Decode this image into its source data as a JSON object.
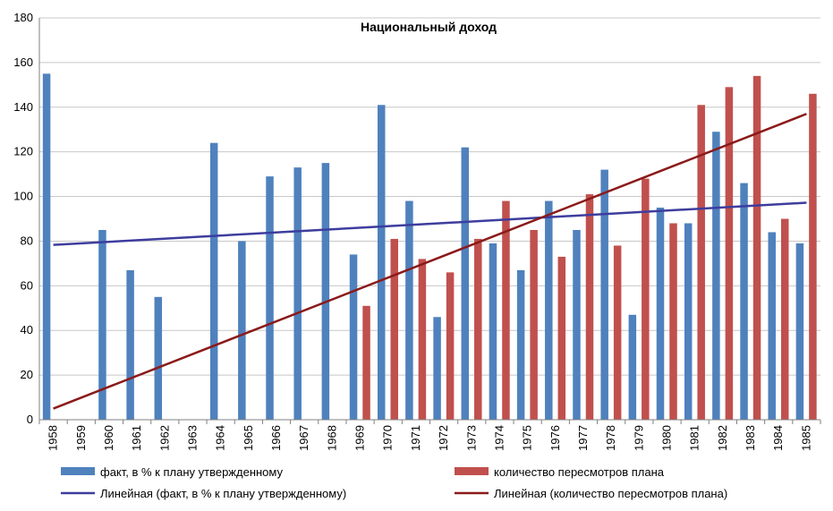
{
  "chart_data": {
    "type": "bar",
    "title": "Национальный доход",
    "xlabel": "",
    "ylabel": "",
    "ylim": [
      0,
      180
    ],
    "yticks": [
      0,
      20,
      40,
      60,
      80,
      100,
      120,
      140,
      160,
      180
    ],
    "grid": true,
    "legend_position": "bottom",
    "categories": [
      "1958",
      "1959",
      "1960",
      "1961",
      "1962",
      "1963",
      "1964",
      "1965",
      "1966",
      "1967",
      "1968",
      "1969",
      "1970",
      "1971",
      "1972",
      "1973",
      "1974",
      "1975",
      "1976",
      "1977",
      "1978",
      "1979",
      "1980",
      "1981",
      "1982",
      "1983",
      "1984",
      "1985"
    ],
    "series": [
      {
        "name": "факт, в % к плану утвержденному",
        "color": "#4f81bd",
        "values": [
          155,
          null,
          85,
          67,
          55,
          null,
          124,
          80,
          109,
          113,
          115,
          74,
          141,
          98,
          46,
          122,
          79,
          67,
          98,
          85,
          112,
          47,
          95,
          88,
          129,
          106,
          84,
          79
        ]
      },
      {
        "name": "количество пересмотров плана",
        "color": "#c0504d",
        "values": [
          null,
          null,
          null,
          null,
          null,
          null,
          null,
          null,
          null,
          null,
          null,
          51,
          81,
          72,
          66,
          81,
          98,
          85,
          73,
          101,
          78,
          108,
          88,
          141,
          149,
          154,
          90,
          146
        ]
      }
    ],
    "trendlines": [
      {
        "name": "Линейная (факт, в % к плану утвержденному)",
        "color": "#3d3d9e",
        "start": {
          "x": "1958",
          "y": 78.3
        },
        "end": {
          "x": "1985",
          "y": 97.2
        }
      },
      {
        "name": "Линейная (количество пересмотров плана)",
        "color": "#8b1a1a",
        "start": {
          "x": "1958",
          "y": 5
        },
        "end": {
          "x": "1985",
          "y": 137
        }
      }
    ]
  }
}
